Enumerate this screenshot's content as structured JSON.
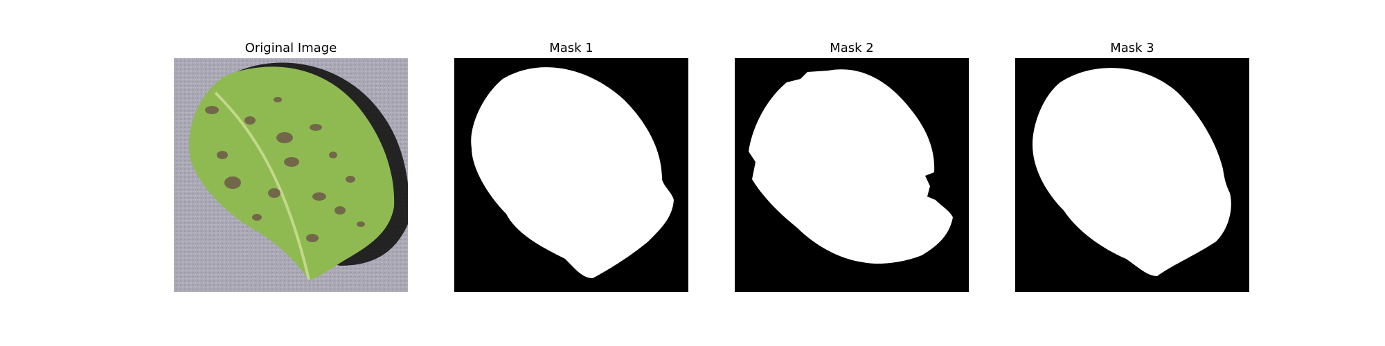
{
  "panels": [
    {
      "title": "Original Image"
    },
    {
      "title": "Mask 1"
    },
    {
      "title": "Mask 2"
    },
    {
      "title": "Mask 3"
    }
  ],
  "colors": {
    "background": "#a9a8b4",
    "leaf": "#8fba52",
    "leaf_vein": "#c3d98a",
    "lesion": "#6e5a48",
    "shadow": "#141414",
    "mask_bg": "#000000",
    "mask_fg": "#ffffff"
  }
}
